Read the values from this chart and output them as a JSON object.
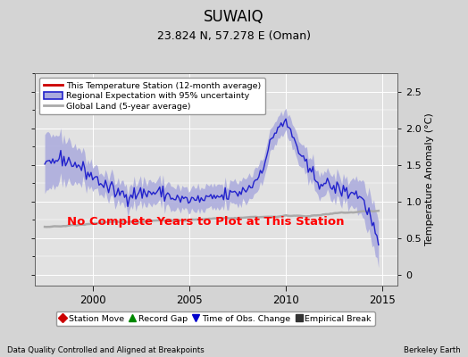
{
  "title": "SUWAIQ",
  "subtitle": "23.824 N, 57.278 E (Oman)",
  "xlabel_left": "Data Quality Controlled and Aligned at Breakpoints",
  "xlabel_right": "Berkeley Earth",
  "ylabel": "Temperature Anomaly (°C)",
  "xlim": [
    1997.0,
    2015.8
  ],
  "ylim": [
    -0.15,
    2.75
  ],
  "yticks": [
    0,
    0.5,
    1.0,
    1.5,
    2.0,
    2.5
  ],
  "xticks": [
    2000,
    2005,
    2010,
    2015
  ],
  "bg_color": "#d4d4d4",
  "plot_bg_color": "#e2e2e2",
  "grid_color": "#ffffff",
  "blue_line_color": "#2222cc",
  "blue_fill_color": "#aaaadd",
  "red_line_color": "#cc0000",
  "gray_line_color": "#aaaaaa",
  "annotation_text": "No Complete Years to Plot at This Station",
  "annotation_color": "#ff0000",
  "legend_labels": [
    "This Temperature Station (12-month average)",
    "Regional Expectation with 95% uncertainty",
    "Global Land (5-year average)"
  ],
  "bottom_legend": [
    "Station Move",
    "Record Gap",
    "Time of Obs. Change",
    "Empirical Break"
  ],
  "bottom_legend_colors": [
    "#cc0000",
    "#008800",
    "#0000cc",
    "#333333"
  ],
  "bottom_legend_markers": [
    "D",
    "^",
    "v",
    "s"
  ],
  "seed": 42,
  "n_points": 210,
  "start_year": 1997.5,
  "end_year": 2014.8
}
